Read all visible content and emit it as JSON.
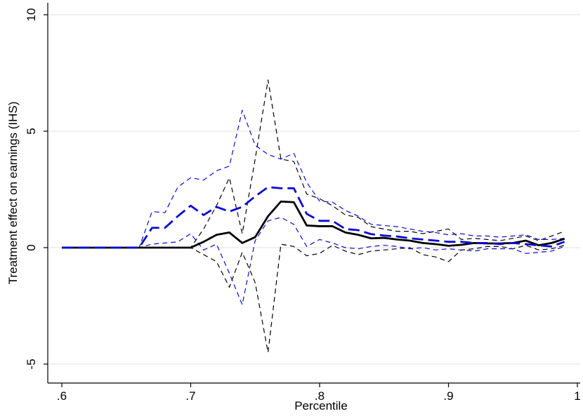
{
  "chart_data": {
    "type": "line",
    "title": "",
    "xlabel": "Percentile",
    "ylabel": "Treatment effect on earnings (IHS)",
    "xlim": [
      0.6,
      1.0
    ],
    "ylim": [
      -5,
      10
    ],
    "xticks": [
      0.6,
      0.7,
      0.8,
      0.9,
      1.0
    ],
    "xtick_labels": [
      ".6",
      ".7",
      ".8",
      ".9",
      "1"
    ],
    "yticks": [
      -5,
      0,
      5,
      10
    ],
    "ytick_labels": [
      "-5",
      "0",
      "5",
      "10"
    ],
    "grid": "horizontal",
    "legend": "none",
    "x": [
      0.6,
      0.61,
      0.62,
      0.63,
      0.64,
      0.65,
      0.66,
      0.67,
      0.68,
      0.69,
      0.7,
      0.71,
      0.72,
      0.73,
      0.74,
      0.75,
      0.76,
      0.77,
      0.78,
      0.79,
      0.8,
      0.81,
      0.82,
      0.83,
      0.84,
      0.85,
      0.86,
      0.87,
      0.88,
      0.89,
      0.9,
      0.91,
      0.92,
      0.93,
      0.94,
      0.95,
      0.96,
      0.97,
      0.98,
      0.99
    ],
    "series": [
      {
        "color": "#000000",
        "style": "solid",
        "width": 2.8,
        "values": [
          0,
          0,
          0,
          0,
          0,
          0,
          0,
          0,
          0,
          0,
          0,
          0.25,
          0.55,
          0.65,
          0.2,
          0.45,
          1.35,
          1.98,
          1.95,
          0.95,
          0.92,
          0.92,
          0.65,
          0.55,
          0.4,
          0.42,
          0.35,
          0.3,
          0.2,
          0.15,
          0.08,
          0.12,
          0.2,
          0.18,
          0.18,
          0.2,
          0.3,
          0.1,
          0.2,
          0.38
        ]
      },
      {
        "color": "#000000",
        "style": "dashed",
        "width": 1.2,
        "values": [
          0,
          0,
          0,
          0,
          0,
          0,
          0,
          0,
          0,
          0,
          0,
          0.8,
          1.8,
          3.0,
          0.6,
          3.8,
          7.2,
          3.8,
          3.7,
          2.3,
          2.1,
          1.8,
          1.4,
          1.3,
          0.9,
          0.8,
          0.7,
          0.7,
          0.6,
          0.7,
          0.8,
          0.35,
          0.4,
          0.35,
          0.3,
          0.4,
          0.5,
          0.3,
          0.5,
          0.7
        ]
      },
      {
        "color": "#000000",
        "style": "dashed",
        "width": 1.2,
        "values": [
          0,
          0,
          0,
          0,
          0,
          0,
          0,
          0,
          0,
          0,
          0,
          -0.3,
          -0.6,
          -1.7,
          -0.2,
          -1.5,
          -4.5,
          0.15,
          0.05,
          -0.35,
          -0.25,
          0.1,
          -0.15,
          -0.3,
          -0.15,
          -0.1,
          -0.05,
          0,
          -0.3,
          -0.4,
          -0.6,
          -0.1,
          -0.05,
          0.05,
          0.05,
          -0.05,
          0.1,
          -0.1,
          -0.05,
          0.1
        ]
      },
      {
        "color": "#0a0ad4",
        "style": "longdash",
        "width": 2.8,
        "values": [
          0,
          0,
          0,
          0,
          0,
          0,
          0,
          0.85,
          0.85,
          1.35,
          1.8,
          1.4,
          1.75,
          1.55,
          1.75,
          2.2,
          2.6,
          2.55,
          2.55,
          1.45,
          1.15,
          1.15,
          0.8,
          0.75,
          0.58,
          0.52,
          0.48,
          0.4,
          0.35,
          0.3,
          0.25,
          0.25,
          0.2,
          0.2,
          0.15,
          0.2,
          0.15,
          0.1,
          0.05,
          0.25
        ]
      },
      {
        "color": "#0a0ad4",
        "style": "dashed",
        "width": 1.2,
        "values": [
          0,
          0,
          0,
          0,
          0,
          0,
          0,
          1.55,
          1.5,
          2.6,
          3.0,
          2.9,
          3.3,
          3.5,
          5.9,
          4.4,
          4.0,
          3.8,
          4.05,
          2.8,
          2.0,
          1.95,
          1.6,
          1.35,
          1.0,
          0.95,
          0.9,
          0.8,
          0.7,
          0.65,
          0.55,
          0.6,
          0.5,
          0.5,
          0.45,
          0.5,
          0.55,
          0.35,
          0.35,
          0.4
        ]
      },
      {
        "color": "#0a0ad4",
        "style": "dashed",
        "width": 1.2,
        "values": [
          0,
          0,
          0,
          0,
          0,
          0,
          0,
          0.15,
          0.2,
          0.25,
          0.6,
          -0.1,
          0.15,
          -1.1,
          -2.45,
          0.3,
          1.15,
          1.3,
          1.0,
          0.05,
          0.35,
          0.2,
          0.0,
          -0.05,
          0.05,
          0.1,
          0.05,
          -0.05,
          0.0,
          -0.1,
          -0.05,
          -0.1,
          -0.15,
          -0.05,
          -0.05,
          -0.05,
          -0.25,
          -0.2,
          -0.15,
          0.05
        ]
      }
    ]
  }
}
